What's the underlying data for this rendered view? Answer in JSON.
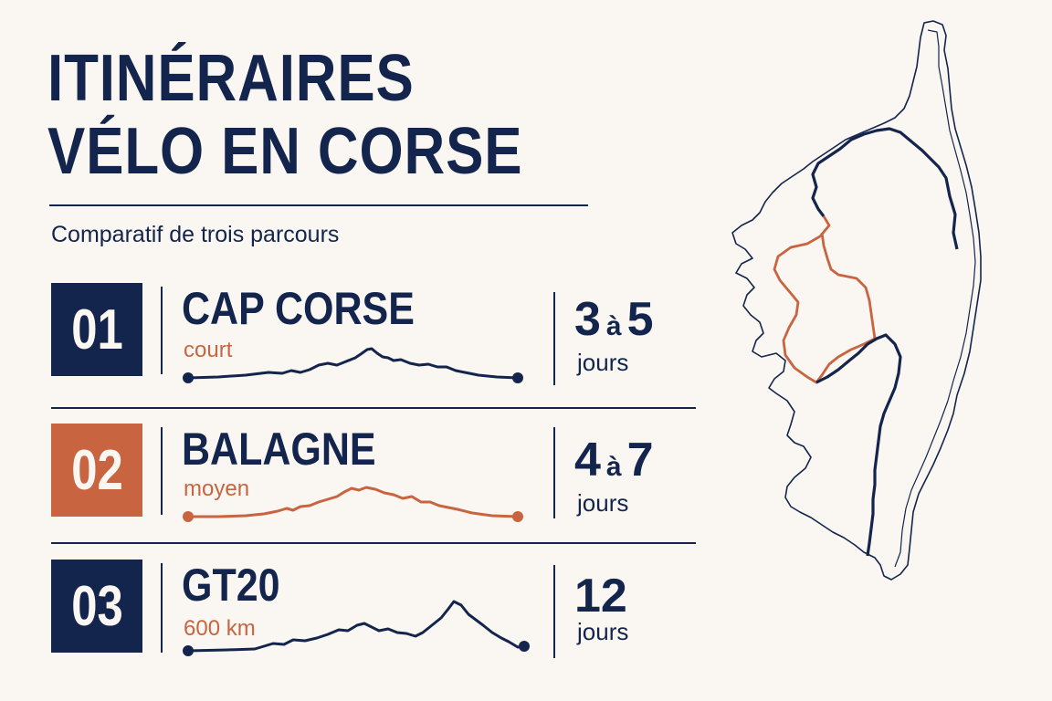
{
  "title": {
    "line1": "ITINÉRAIRES",
    "line2": "VÉLO EN CORSE"
  },
  "subtitle": "Comparatif de trois parcours",
  "colors": {
    "navy": "#14254D",
    "orange": "#C96440",
    "background": "#FAF7F2"
  },
  "routes": [
    {
      "number": "01",
      "name": "CAP CORSE",
      "detail": "court",
      "duration": {
        "from": "3",
        "connector": "à",
        "to": "5",
        "unit": "jours"
      },
      "accent": "navy"
    },
    {
      "number": "02",
      "name": "BALAGNE",
      "detail": "moyen",
      "duration": {
        "from": "4",
        "connector": "à",
        "to": "7",
        "unit": "jours"
      },
      "accent": "orange"
    },
    {
      "number": "03",
      "name": "GT20",
      "detail": "600 km",
      "duration": {
        "value": "12",
        "unit": "jours"
      },
      "accent": "navy"
    }
  ],
  "icons": [
    "elevation-profile-icon",
    "corsica-map-icon"
  ]
}
